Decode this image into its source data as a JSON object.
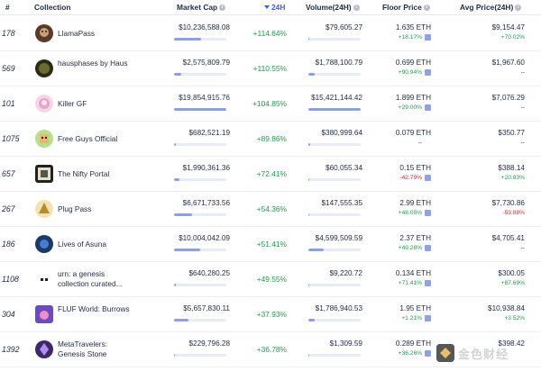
{
  "header": {
    "rank": "#",
    "collection": "Collection",
    "market_cap": "Market Cap",
    "change_24h": "24H",
    "volume": "Volume(24H)",
    "floor_price": "Floor Price",
    "avg_price": "Avg Price(24H)"
  },
  "colors": {
    "accent": "#3d5afe",
    "positive": "#16a34a",
    "negative": "#dc2626",
    "bar": "#8c9ef0"
  },
  "rows": [
    {
      "rank": "178",
      "name": "LlamaPass",
      "market_cap": "$10,236,588.08",
      "mcap_fraction": 0.52,
      "change": "+114.64%",
      "volume": "$79,605.27",
      "vol_fraction": 0.01,
      "floor": "1.635 ETH",
      "floor_change": "+18.17%",
      "floor_change_dir": "pos",
      "avg": "$9,154.47",
      "avg_change": "+70.02%",
      "avg_change_dir": "pos"
    },
    {
      "rank": "569",
      "name": "hausphases by Haus",
      "market_cap": "$2,575,809.79",
      "mcap_fraction": 0.13,
      "change": "+110.55%",
      "volume": "$1,788,100.79",
      "vol_fraction": 0.12,
      "floor": "0.699 ETH",
      "floor_change": "+90.94%",
      "floor_change_dir": "pos",
      "avg": "$1,967.60",
      "avg_change": "--",
      "avg_change_dir": "dash"
    },
    {
      "rank": "101",
      "name": "Killer GF",
      "market_cap": "$19,854,915.76",
      "mcap_fraction": 1.0,
      "change": "+104.85%",
      "volume": "$15,421,144.42",
      "vol_fraction": 1.0,
      "floor": "1.899 ETH",
      "floor_change": "+29.00%",
      "floor_change_dir": "pos",
      "avg": "$7,076.29",
      "avg_change": "--",
      "avg_change_dir": "dash"
    },
    {
      "rank": "1075",
      "name": "Free Guys Official",
      "market_cap": "$682,521.19",
      "mcap_fraction": 0.035,
      "change": "+89.86%",
      "volume": "$380,999.64",
      "vol_fraction": 0.03,
      "floor": "0.079 ETH",
      "floor_change": "--",
      "floor_change_dir": "dash",
      "avg": "$350.77",
      "avg_change": "--",
      "avg_change_dir": "dash"
    },
    {
      "rank": "657",
      "name": "The Nifty Portal",
      "market_cap": "$1,990,361.36",
      "mcap_fraction": 0.1,
      "change": "+72.41%",
      "volume": "$60,055.34",
      "vol_fraction": 0.01,
      "floor": "0.15 ETH",
      "floor_change": "-42.79%",
      "floor_change_dir": "neg",
      "avg": "$388.14",
      "avg_change": "+20.93%",
      "avg_change_dir": "pos"
    },
    {
      "rank": "267",
      "name": "Plug Pass",
      "market_cap": "$6,671,733.56",
      "mcap_fraction": 0.34,
      "change": "+54.36%",
      "volume": "$147,555.35",
      "vol_fraction": 0.01,
      "floor": "2.99 ETH",
      "floor_change": "+48.05%",
      "floor_change_dir": "pos",
      "avg": "$7,730.86",
      "avg_change": "-53.88%",
      "avg_change_dir": "neg"
    },
    {
      "rank": "186",
      "name": "Lives of Asuna",
      "market_cap": "$10,004,042.09",
      "mcap_fraction": 0.5,
      "change": "+51.41%",
      "volume": "$4,599,509.59",
      "vol_fraction": 0.3,
      "floor": "2.37 ETH",
      "floor_change": "+49.28%",
      "floor_change_dir": "pos",
      "avg": "$4,705.41",
      "avg_change": "--",
      "avg_change_dir": "dash"
    },
    {
      "rank": "1108",
      "name": "urn: a genesis collection curated...",
      "market_cap": "$640,280.25",
      "mcap_fraction": 0.03,
      "change": "+49.55%",
      "volume": "$9,220.72",
      "vol_fraction": 0.0,
      "floor": "0.134 ETH",
      "floor_change": "+71.41%",
      "floor_change_dir": "pos",
      "avg": "$300.05",
      "avg_change": "+87.69%",
      "avg_change_dir": "pos"
    },
    {
      "rank": "304",
      "name": "FLUF World: Burrows",
      "market_cap": "$5,657,830.11",
      "mcap_fraction": 0.28,
      "change": "+37.93%",
      "volume": "$1,786,940.53",
      "vol_fraction": 0.12,
      "floor": "1.95 ETH",
      "floor_change": "+1.21%",
      "floor_change_dir": "pos",
      "avg": "$10,938.84",
      "avg_change": "+3.52%",
      "avg_change_dir": "pos"
    },
    {
      "rank": "1392",
      "name": "MetaTravelers: Genesis Stone",
      "market_cap": "$229,796.28",
      "mcap_fraction": 0.01,
      "change": "+36.78%",
      "volume": "$1,309.59",
      "vol_fraction": 0.0,
      "floor": "0.289 ETH",
      "floor_change": "+36.26%",
      "floor_change_dir": "pos",
      "avg": "$398.42",
      "avg_change": "",
      "avg_change_dir": "dash"
    }
  ],
  "watermark": {
    "text": "金色财经",
    "icon": "jinse-logo"
  }
}
